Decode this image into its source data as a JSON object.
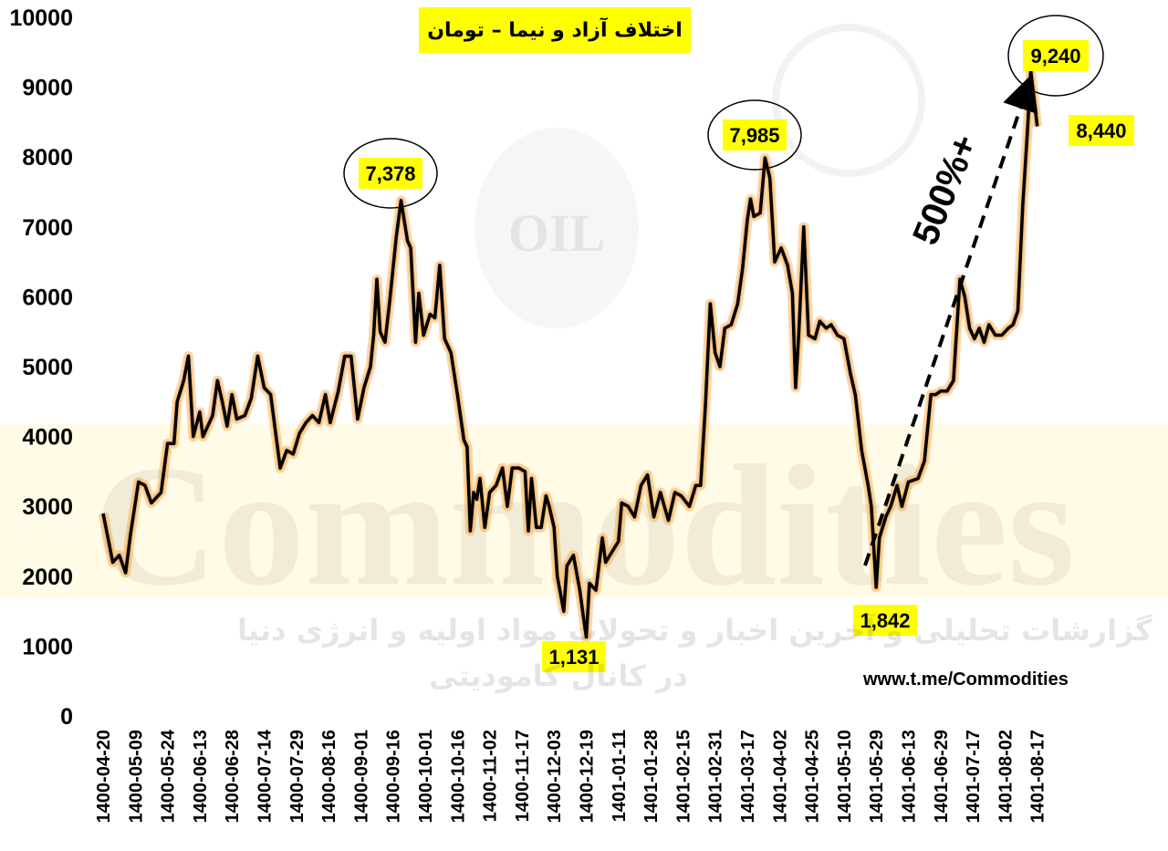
{
  "chart_data": {
    "type": "line",
    "title": "اختلاف آزاد و نیما – تومان",
    "ylim": [
      0,
      10000
    ],
    "yticks": [
      "0",
      "1000",
      "2000",
      "3000",
      "4000",
      "5000",
      "6000",
      "7000",
      "8000",
      "9000",
      "10000"
    ],
    "xticks": [
      "1400-04-20",
      "1400-05-09",
      "1400-05-24",
      "1400-06-13",
      "1400-06-28",
      "1400-07-14",
      "1400-07-29",
      "1400-08-16",
      "1400-09-01",
      "1400-09-16",
      "1400-10-01",
      "1400-10-16",
      "1400-11-02",
      "1400-11-17",
      "1400-12-03",
      "1400-12-19",
      "1401-01-11",
      "1401-01-28",
      "1401-02-15",
      "1401-02-31",
      "1401-03-17",
      "1401-04-02",
      "1401-04-25",
      "1401-05-10",
      "1401-05-29",
      "1401-06-13",
      "1401-06-29",
      "1401-07-17",
      "1401-08-02",
      "1401-08-17"
    ],
    "series": [
      {
        "color": "#000000",
        "points": [
          [
            0,
            2900
          ],
          [
            0.3,
            2200
          ],
          [
            0.5,
            2300
          ],
          [
            0.7,
            2050
          ],
          [
            0.85,
            2600
          ],
          [
            1.1,
            3350
          ],
          [
            1.3,
            3300
          ],
          [
            1.5,
            3050
          ],
          [
            1.8,
            3200
          ],
          [
            2.0,
            3900
          ],
          [
            2.2,
            3900
          ],
          [
            2.3,
            4500
          ],
          [
            2.5,
            4800
          ],
          [
            2.65,
            5150
          ],
          [
            2.8,
            4000
          ],
          [
            3.0,
            4350
          ],
          [
            3.1,
            4000
          ],
          [
            3.4,
            4300
          ],
          [
            3.55,
            4800
          ],
          [
            3.7,
            4500
          ],
          [
            3.85,
            4150
          ],
          [
            4.0,
            4600
          ],
          [
            4.15,
            4250
          ],
          [
            4.4,
            4300
          ],
          [
            4.6,
            4550
          ],
          [
            4.8,
            5150
          ],
          [
            5.0,
            4700
          ],
          [
            5.2,
            4600
          ],
          [
            5.5,
            3550
          ],
          [
            5.7,
            3800
          ],
          [
            5.9,
            3750
          ],
          [
            6.1,
            4050
          ],
          [
            6.3,
            4200
          ],
          [
            6.5,
            4300
          ],
          [
            6.7,
            4200
          ],
          [
            6.9,
            4600
          ],
          [
            7.05,
            4200
          ],
          [
            7.3,
            4650
          ],
          [
            7.5,
            5150
          ],
          [
            7.7,
            5150
          ],
          [
            7.9,
            4250
          ],
          [
            8.1,
            4700
          ],
          [
            8.3,
            5000
          ],
          [
            8.4,
            5450
          ],
          [
            8.5,
            6250
          ],
          [
            8.6,
            5500
          ],
          [
            8.75,
            5350
          ],
          [
            8.9,
            5950
          ],
          [
            9.1,
            6850
          ],
          [
            9.25,
            7378
          ],
          [
            9.45,
            6800
          ],
          [
            9.55,
            6700
          ],
          [
            9.7,
            5350
          ],
          [
            9.8,
            6050
          ],
          [
            9.95,
            5450
          ],
          [
            10.15,
            5750
          ],
          [
            10.3,
            5700
          ],
          [
            10.45,
            6450
          ],
          [
            10.6,
            5400
          ],
          [
            10.8,
            5200
          ],
          [
            11.0,
            4600
          ],
          [
            11.2,
            3950
          ],
          [
            11.3,
            3850
          ],
          [
            11.4,
            2650
          ],
          [
            11.5,
            3200
          ],
          [
            11.6,
            3100
          ],
          [
            11.7,
            3400
          ],
          [
            11.85,
            2700
          ],
          [
            12.0,
            3200
          ],
          [
            12.2,
            3300
          ],
          [
            12.4,
            3550
          ],
          [
            12.55,
            3000
          ],
          [
            12.7,
            3550
          ],
          [
            12.9,
            3550
          ],
          [
            13.1,
            3500
          ],
          [
            13.2,
            2650
          ],
          [
            13.3,
            3400
          ],
          [
            13.45,
            2700
          ],
          [
            13.6,
            2700
          ],
          [
            13.75,
            3150
          ],
          [
            13.85,
            3000
          ],
          [
            14.0,
            2700
          ],
          [
            14.1,
            2000
          ],
          [
            14.3,
            1500
          ],
          [
            14.4,
            2150
          ],
          [
            14.6,
            2300
          ],
          [
            14.8,
            1800
          ],
          [
            14.9,
            1450
          ],
          [
            15.0,
            1131
          ],
          [
            15.1,
            1900
          ],
          [
            15.3,
            1800
          ],
          [
            15.5,
            2550
          ],
          [
            15.6,
            2200
          ],
          [
            15.8,
            2350
          ],
          [
            16.0,
            2500
          ],
          [
            16.1,
            3050
          ],
          [
            16.3,
            3000
          ],
          [
            16.5,
            2850
          ],
          [
            16.7,
            3300
          ],
          [
            16.9,
            3450
          ],
          [
            17.1,
            2850
          ],
          [
            17.3,
            3200
          ],
          [
            17.55,
            2800
          ],
          [
            17.75,
            3200
          ],
          [
            17.95,
            3150
          ],
          [
            18.2,
            3000
          ],
          [
            18.4,
            3300
          ],
          [
            18.55,
            3300
          ],
          [
            18.7,
            4450
          ],
          [
            18.85,
            5900
          ],
          [
            19.0,
            5200
          ],
          [
            19.15,
            5000
          ],
          [
            19.3,
            5550
          ],
          [
            19.5,
            5600
          ],
          [
            19.7,
            5900
          ],
          [
            19.85,
            6400
          ],
          [
            20.0,
            7100
          ],
          [
            20.1,
            7400
          ],
          [
            20.2,
            7150
          ],
          [
            20.4,
            7200
          ],
          [
            20.55,
            7985
          ],
          [
            20.7,
            7700
          ],
          [
            20.85,
            6500
          ],
          [
            21.05,
            6700
          ],
          [
            21.25,
            6450
          ],
          [
            21.4,
            6050
          ],
          [
            21.5,
            4700
          ],
          [
            21.6,
            5500
          ],
          [
            21.75,
            7000
          ],
          [
            21.9,
            5450
          ],
          [
            22.1,
            5400
          ],
          [
            22.25,
            5650
          ],
          [
            22.45,
            5550
          ],
          [
            22.6,
            5600
          ],
          [
            22.8,
            5450
          ],
          [
            23.0,
            5400
          ],
          [
            23.2,
            4900
          ],
          [
            23.35,
            4600
          ],
          [
            23.55,
            3800
          ],
          [
            23.75,
            3300
          ],
          [
            23.85,
            3000
          ],
          [
            24.0,
            1842
          ],
          [
            24.1,
            2550
          ],
          [
            24.3,
            2850
          ],
          [
            24.45,
            3000
          ],
          [
            24.65,
            3300
          ],
          [
            24.8,
            3000
          ],
          [
            25.0,
            3350
          ],
          [
            25.3,
            3400
          ],
          [
            25.5,
            3650
          ],
          [
            25.7,
            4600
          ],
          [
            25.85,
            4600
          ],
          [
            26.0,
            4650
          ],
          [
            26.2,
            4650
          ],
          [
            26.4,
            4800
          ],
          [
            26.6,
            6250
          ],
          [
            26.75,
            6000
          ],
          [
            26.9,
            5550
          ],
          [
            27.05,
            5400
          ],
          [
            27.2,
            5550
          ],
          [
            27.35,
            5350
          ],
          [
            27.5,
            5600
          ],
          [
            27.7,
            5450
          ],
          [
            27.9,
            5450
          ],
          [
            28.1,
            5550
          ],
          [
            28.25,
            5600
          ],
          [
            28.4,
            5800
          ],
          [
            28.55,
            7300
          ],
          [
            28.7,
            8400
          ],
          [
            28.8,
            9240
          ],
          [
            29.0,
            8440
          ]
        ]
      }
    ],
    "annotations": {
      "peak1": "7,378",
      "peak2": "7,985",
      "trough1": "1,131",
      "trough2": "1,842",
      "peak3": "9,240",
      "last": "8,440",
      "percent": "500%+"
    },
    "grid": false,
    "legend": "none"
  },
  "source": "www.t.me/Commodities",
  "watermark": {
    "brand": "Commodities",
    "line1": "گزارشات تحلیلی و آخرین اخبار و تحولات مواد اولیه و انرژی دنیا",
    "line2": "در کانال کامودیتی",
    "oil": "OIL"
  },
  "colors": {
    "line": "#000000",
    "glow": "#f4a64a",
    "label_bg": "#ffff00"
  }
}
